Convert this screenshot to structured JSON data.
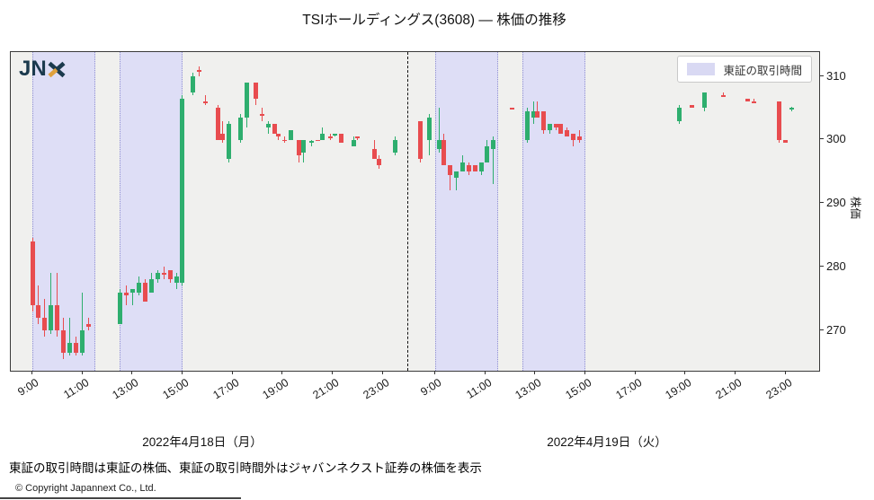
{
  "title": "TSIホールディングス(3608) ― 株価の推移",
  "logo": {
    "jn": "JN",
    "navy": "#1b3a4d",
    "orange": "#dfa13d"
  },
  "legend": {
    "label": "東証の取引時間",
    "swatch_color": "#d9d9f3"
  },
  "axes": {
    "y_label": "株価",
    "y_ticks": [
      310,
      300,
      290,
      280,
      270
    ],
    "x_ticks": [
      "9:00",
      "11:00",
      "13:00",
      "15:00",
      "17:00",
      "19:00",
      "21:00",
      "23:00"
    ],
    "date_day1": "2022年4月18日（月）",
    "date_day2": "2022年4月19日（火）"
  },
  "footer": {
    "note": "東証の取引時間は東証の株価、東証の取引時間外はジャバンネクスト証券の株価を表示",
    "copyright": "© Copyright  Japannext Co., Ltd."
  },
  "chart_data": {
    "type": "candlestick",
    "title": "TSIホールディングス(3608) 株価の推移",
    "ylabel": "株価",
    "ylim": [
      263.5,
      313.8
    ],
    "grid": false,
    "legend_position": "top-right",
    "colors": {
      "up": "#2eae6e",
      "down": "#e84c4f",
      "session_band": "#dedef6",
      "plot_bg": "#f0f0ee"
    },
    "tse_sessions": [
      [
        "9:00",
        "11:30"
      ],
      [
        "12:30",
        "15:00"
      ]
    ],
    "days": [
      {
        "id": 1,
        "label": "2022年4月18日（月）"
      },
      {
        "id": 2,
        "label": "2022年4月19日（火）"
      }
    ],
    "candles": [
      [
        1,
        "9:00",
        284,
        284.5,
        273,
        274
      ],
      [
        1,
        "9:15",
        274,
        277,
        271,
        272
      ],
      [
        1,
        "9:30",
        272,
        275,
        269,
        270
      ],
      [
        1,
        "9:45",
        270,
        279,
        269.5,
        274
      ],
      [
        1,
        "10:00",
        274,
        279,
        269,
        270
      ],
      [
        1,
        "10:15",
        270,
        272,
        265.5,
        266.5
      ],
      [
        1,
        "10:30",
        266.5,
        272,
        266,
        268
      ],
      [
        1,
        "10:45",
        268,
        269,
        266,
        266.5
      ],
      [
        1,
        "11:00",
        266.5,
        276,
        266,
        270
      ],
      [
        1,
        "11:15",
        271,
        272,
        270,
        270.5
      ],
      [
        1,
        "12:30",
        271,
        276.5,
        271,
        276
      ],
      [
        1,
        "12:45",
        276,
        277,
        274,
        275.5
      ],
      [
        1,
        "13:00",
        276,
        276.5,
        274,
        276.5
      ],
      [
        1,
        "13:15",
        276,
        278.5,
        275.5,
        277.5
      ],
      [
        1,
        "13:30",
        277.5,
        278,
        274.5,
        274.5
      ],
      [
        1,
        "13:45",
        276,
        279,
        276,
        278
      ],
      [
        1,
        "14:00",
        278,
        279.5,
        277.5,
        279
      ],
      [
        1,
        "14:15",
        279,
        280,
        278,
        279
      ],
      [
        1,
        "14:30",
        279.5,
        279.5,
        277.5,
        278
      ],
      [
        1,
        "14:45",
        277.5,
        279,
        276.5,
        278.5
      ],
      [
        1,
        "15:00",
        277.5,
        307,
        277,
        306.5
      ],
      [
        1,
        "15:25",
        307.5,
        310.5,
        307,
        310
      ],
      [
        1,
        "15:40",
        311,
        311.5,
        310,
        311
      ],
      [
        1,
        "15:55",
        306,
        307,
        305.5,
        306
      ],
      [
        1,
        "16:25",
        305,
        305.5,
        300,
        300
      ],
      [
        1,
        "16:35",
        301,
        303,
        299.5,
        300
      ],
      [
        1,
        "16:50",
        297,
        303,
        296.5,
        302.5
      ],
      [
        1,
        "17:20",
        300,
        304,
        299.5,
        303.5
      ],
      [
        1,
        "17:35",
        303.5,
        309,
        302,
        309
      ],
      [
        1,
        "17:55",
        309,
        309,
        305.5,
        306.5
      ],
      [
        1,
        "18:10",
        304,
        305,
        303,
        304
      ],
      [
        1,
        "18:25",
        302,
        303,
        301,
        302.5
      ],
      [
        1,
        "18:40",
        302.5,
        302.5,
        301,
        301
      ],
      [
        1,
        "18:50",
        301,
        301,
        300,
        300.5
      ],
      [
        1,
        "19:05",
        300,
        300.5,
        299.5,
        300
      ],
      [
        1,
        "19:20",
        300,
        301.5,
        300,
        301.5
      ],
      [
        1,
        "19:40",
        300,
        300,
        296.5,
        297.5
      ],
      [
        1,
        "19:50",
        298,
        300,
        296.5,
        300
      ],
      [
        1,
        "20:10",
        299.5,
        300,
        299,
        299.8
      ],
      [
        1,
        "20:25",
        300,
        300,
        300,
        300
      ],
      [
        1,
        "20:35",
        300,
        302,
        300,
        301
      ],
      [
        1,
        "20:55",
        300.5,
        301,
        300,
        300.5
      ],
      [
        1,
        "21:05",
        300.7,
        301,
        300.5,
        301
      ],
      [
        1,
        "21:20",
        301,
        301,
        299.5,
        299.5
      ],
      [
        1,
        "21:50",
        299,
        300.5,
        299,
        300
      ],
      [
        1,
        "22:00",
        300.5,
        300.5,
        300,
        300.5
      ],
      [
        1,
        "22:40",
        298.5,
        300,
        297,
        297
      ],
      [
        1,
        "22:50",
        297,
        297.5,
        295.5,
        296
      ],
      [
        1,
        "23:30",
        298,
        300.5,
        297.5,
        300
      ],
      [
        2,
        "8:25",
        303,
        303,
        296.5,
        297
      ],
      [
        2,
        "8:45",
        300,
        304,
        297.5,
        303.5
      ],
      [
        2,
        "9:10",
        298.5,
        305,
        298,
        300
      ],
      [
        2,
        "9:20",
        300,
        301,
        296,
        296
      ],
      [
        2,
        "9:35",
        296,
        296,
        292,
        294.5
      ],
      [
        2,
        "9:50",
        294,
        295,
        292,
        295
      ],
      [
        2,
        "10:05",
        295,
        297.5,
        295,
        296.5
      ],
      [
        2,
        "10:20",
        296,
        296.5,
        294.5,
        295
      ],
      [
        2,
        "10:35",
        296,
        296,
        295,
        295
      ],
      [
        2,
        "10:50",
        295,
        296.5,
        294.5,
        296.5
      ],
      [
        2,
        "11:05",
        296.5,
        300,
        296.5,
        299
      ],
      [
        2,
        "11:20",
        298.5,
        300.5,
        293,
        300
      ],
      [
        2,
        "12:05",
        305,
        305,
        305,
        305
      ],
      [
        2,
        "12:40",
        300,
        305,
        299.5,
        304.5
      ],
      [
        2,
        "12:55",
        303.5,
        306,
        302.5,
        304.5
      ],
      [
        2,
        "13:05",
        304.5,
        306,
        303.5,
        303.5
      ],
      [
        2,
        "13:20",
        304.5,
        304.5,
        301,
        301.5
      ],
      [
        2,
        "13:35",
        301.5,
        302.5,
        301,
        302.5
      ],
      [
        2,
        "13:50",
        302.5,
        302.5,
        301.5,
        302
      ],
      [
        2,
        "14:00",
        302.5,
        302.5,
        301,
        301
      ],
      [
        2,
        "14:15",
        301.5,
        302,
        300.5,
        300.5
      ],
      [
        2,
        "14:30",
        301,
        301,
        299,
        300
      ],
      [
        2,
        "14:45",
        300.5,
        301.5,
        299.5,
        300
      ],
      [
        2,
        "18:45",
        303,
        305.5,
        302.5,
        305
      ],
      [
        2,
        "19:15",
        305.5,
        305.5,
        305,
        305
      ],
      [
        2,
        "19:45",
        305,
        307.5,
        304.5,
        307.5
      ],
      [
        2,
        "20:30",
        307,
        307.5,
        307,
        307
      ],
      [
        2,
        "21:30",
        306.5,
        306.5,
        306,
        306
      ],
      [
        2,
        "21:45",
        306,
        306.5,
        306,
        306
      ],
      [
        2,
        "22:45",
        306,
        306,
        299.5,
        300
      ],
      [
        2,
        "23:00",
        300,
        300,
        299.5,
        299.5
      ],
      [
        2,
        "23:15",
        304.8,
        305.2,
        304.5,
        305
      ]
    ]
  }
}
